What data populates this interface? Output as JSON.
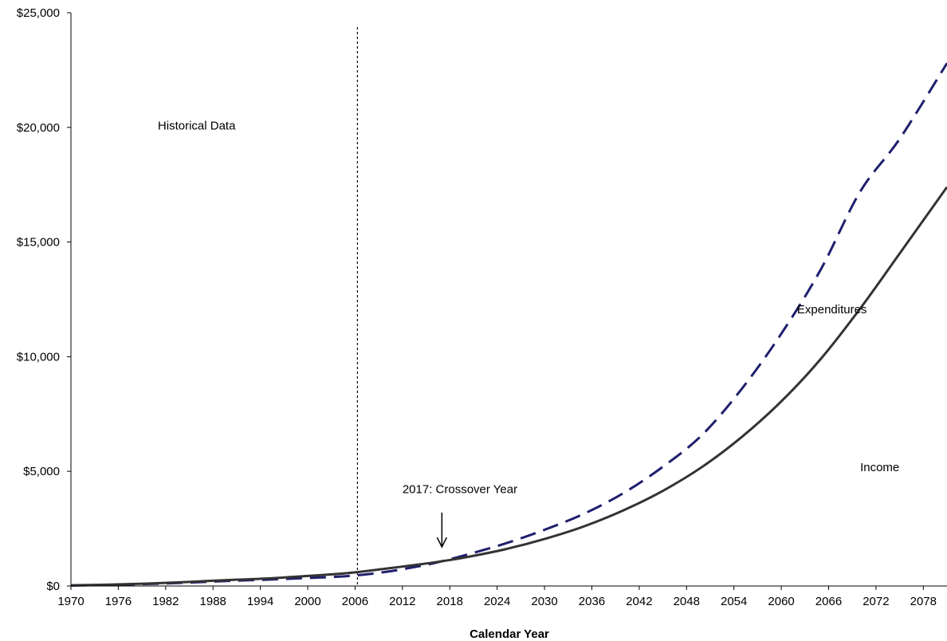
{
  "chart_data": {
    "type": "line",
    "xlabel": "Calendar Year",
    "ylabel": "",
    "xlim": [
      1970,
      2081
    ],
    "ylim": [
      0,
      25000
    ],
    "x_ticks": [
      1970,
      1976,
      1982,
      1988,
      1994,
      2000,
      2006,
      2012,
      2018,
      2024,
      2030,
      2036,
      2042,
      2048,
      2054,
      2060,
      2066,
      2072,
      2078
    ],
    "y_ticks": [
      0,
      5000,
      10000,
      15000,
      20000,
      25000
    ],
    "y_tick_labels": [
      "$0",
      "$5,000",
      "$10,000",
      "$15,000",
      "$20,000",
      "$25,000"
    ],
    "grid": false,
    "historical_divider_x": 2006.3,
    "series": [
      {
        "name": "Expenditures",
        "style": "dashed",
        "color": "#1f1f6e",
        "x": [
          1970,
          1975,
          1980,
          1985,
          1990,
          1995,
          2000,
          2005,
          2010,
          2015,
          2017,
          2020,
          2025,
          2030,
          2035,
          2040,
          2045,
          2050,
          2055,
          2060,
          2065,
          2070,
          2075,
          2081
        ],
        "y": [
          20,
          50,
          90,
          150,
          220,
          280,
          350,
          430,
          620,
          920,
          1080,
          1350,
          1850,
          2450,
          3150,
          4050,
          5200,
          6600,
          8600,
          11000,
          13800,
          17200,
          19500,
          22800
        ]
      },
      {
        "name": "Income",
        "style": "solid",
        "color": "#333333",
        "x": [
          1970,
          1975,
          1980,
          1985,
          1990,
          1995,
          2000,
          2005,
          2010,
          2015,
          2017,
          2020,
          2025,
          2030,
          2035,
          2040,
          2045,
          2050,
          2055,
          2060,
          2065,
          2070,
          2075,
          2081
        ],
        "y": [
          30,
          60,
          110,
          180,
          260,
          330,
          440,
          560,
          760,
          980,
          1080,
          1250,
          1600,
          2050,
          2600,
          3300,
          4150,
          5200,
          6500,
          8050,
          9900,
          12100,
          14500,
          17400
        ]
      }
    ],
    "annotations": [
      {
        "text": "Historical Data",
        "x": 1981,
        "y": 19900
      },
      {
        "text": "Expenditures",
        "x": 2062,
        "y": 11900
      },
      {
        "text": "Income",
        "x": 2070,
        "y": 5000
      },
      {
        "text": "2017: Crossover Year",
        "x": 2012,
        "y": 4050
      }
    ],
    "crossover_arrow": {
      "x": 2017,
      "y_from": 3200,
      "y_to": 1700
    }
  }
}
